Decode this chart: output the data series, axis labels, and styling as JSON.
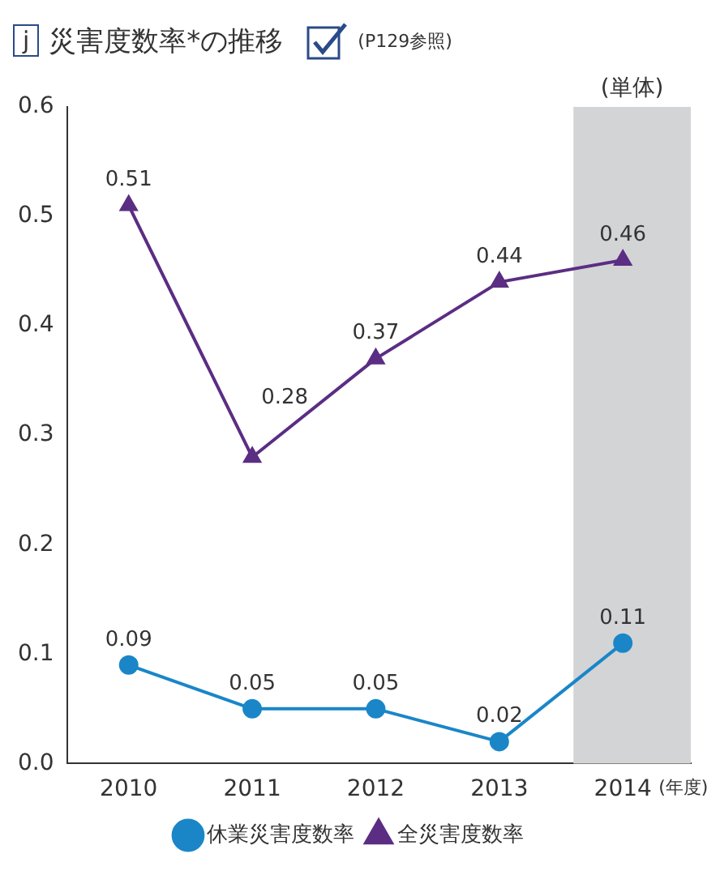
{
  "chart_data": {
    "type": "line",
    "title": "災害度数率*の推移",
    "annotations": [
      "j",
      "(P129参照)"
    ],
    "xlabel": "(年度)",
    "x": [
      2010,
      2011,
      2012,
      2013,
      2014
    ],
    "xlim": [
      2009.5,
      2014.55
    ],
    "xticks": [
      2010,
      2011,
      2012,
      2013,
      2014
    ],
    "ylim": [
      0,
      0.6
    ],
    "yticks": [
      {
        "value": 0,
        "label": "0.0"
      },
      0.1,
      0.2,
      0.3,
      0.4,
      0.5,
      0.6
    ],
    "series": [
      {
        "name": "休業災害度数率",
        "color": "#1a86c8",
        "marker": "circle",
        "values": [
          0.09,
          0.05,
          0.05,
          0.02,
          0.11
        ]
      },
      {
        "name": "全災害度数率",
        "color": "#5b2d83",
        "marker": "triangle",
        "values": [
          0.51,
          0.28,
          0.37,
          0.44,
          0.46
        ]
      }
    ],
    "bands": [
      {
        "axis": "x",
        "from": 2013.6,
        "to": 2014.55,
        "label": "(単体)",
        "color": "#d3d4d6"
      }
    ],
    "data_labels": true,
    "grid": false,
    "legend": "bottom",
    "line_style": "solid"
  }
}
